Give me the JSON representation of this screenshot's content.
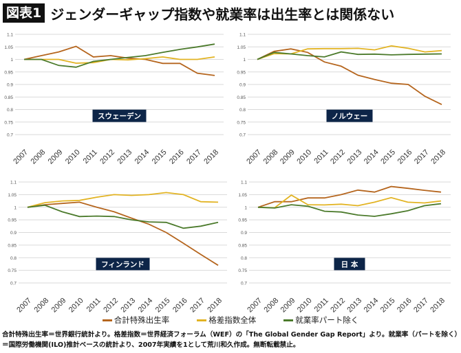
{
  "title": {
    "badge": "図表1",
    "text": "ジェンダーギャップ指数や就業率は出生率とは関係ない"
  },
  "legend": [
    {
      "name": "合計特殊出生率",
      "color": "#b5651d"
    },
    {
      "name": "格差指数全体",
      "color": "#e2b322"
    },
    {
      "name": "就業率パート除く",
      "color": "#4b7a2b"
    }
  ],
  "note": "合計特殊出生率＝世界銀行統計より。格差指数＝世界経済フォーラム（WEF）の「The Global Gender Gap Report」より。就業率（パートを除く）＝国際労働機関(ILO)推計ベースの統計より、2007年実績を1として荒川和久作成。無断転載禁止。",
  "chart_data": [
    {
      "type": "line",
      "label": "スウェーデン",
      "ylim": [
        0.7,
        1.1
      ],
      "yticks": [
        "0.7",
        "0.75",
        "0.8",
        "0.85",
        "0.9",
        "0.95",
        "1",
        "1.05",
        "1.1"
      ],
      "grid": true,
      "x": [
        "2007",
        "2008",
        "2009",
        "2010",
        "2011",
        "2012",
        "2013",
        "2014",
        "2015",
        "2016",
        "2017",
        "2018"
      ],
      "series": [
        {
          "name": "合計特殊出生率",
          "values": [
            1.0,
            1.015,
            1.03,
            1.052,
            1.01,
            1.015,
            1.005,
            1.0,
            0.984,
            0.984,
            0.945,
            0.936
          ]
        },
        {
          "name": "格差指数全体",
          "values": [
            1.0,
            1.0,
            1.0,
            0.985,
            0.987,
            1.0,
            0.998,
            1.003,
            1.01,
            1.0,
            1.0,
            1.01
          ]
        },
        {
          "name": "就業率パート除く",
          "values": [
            1.0,
            1.0,
            0.976,
            0.969,
            0.992,
            1.0,
            1.008,
            1.015,
            1.028,
            1.04,
            1.05,
            1.061
          ]
        }
      ]
    },
    {
      "type": "line",
      "label": "ノルウェー",
      "ylim": [
        0.7,
        1.1
      ],
      "yticks": [
        "0.7",
        "0.75",
        "0.8",
        "0.85",
        "0.9",
        "0.95",
        "1",
        "1.05",
        "1.1"
      ],
      "grid": true,
      "x": [
        "2007",
        "2008",
        "2009",
        "2010",
        "2011",
        "2012",
        "2013",
        "2014",
        "2015",
        "2016",
        "2017",
        "2018"
      ],
      "series": [
        {
          "name": "合計特殊出生率",
          "values": [
            1.0,
            1.032,
            1.042,
            1.028,
            0.99,
            0.973,
            0.937,
            0.92,
            0.905,
            0.9,
            0.853,
            0.82
          ]
        },
        {
          "name": "格差指数全体",
          "values": [
            1.0,
            1.023,
            1.022,
            1.042,
            1.043,
            1.043,
            1.044,
            1.038,
            1.054,
            1.044,
            1.03,
            1.035
          ]
        },
        {
          "name": "就業率パート除く",
          "values": [
            1.0,
            1.028,
            1.022,
            1.015,
            1.01,
            1.03,
            1.02,
            1.021,
            1.018,
            1.02,
            1.021,
            1.022
          ]
        }
      ]
    },
    {
      "type": "line",
      "label": "フィンランド",
      "ylim": [
        0.7,
        1.1
      ],
      "yticks": [
        "0.7",
        "0.75",
        "0.8",
        "0.85",
        "0.9",
        "0.95",
        "1",
        "1.05",
        "1.1"
      ],
      "grid": true,
      "x": [
        "2007",
        "2008",
        "2009",
        "2010",
        "2011",
        "2012",
        "2013",
        "2014",
        "2015",
        "2016",
        "2017",
        "2018"
      ],
      "series": [
        {
          "name": "合計特殊出生率",
          "values": [
            1.0,
            1.01,
            1.015,
            1.02,
            1.0,
            0.982,
            0.957,
            0.933,
            0.9,
            0.857,
            0.813,
            0.77
          ]
        },
        {
          "name": "格差指数全体",
          "values": [
            1.0,
            1.018,
            1.025,
            1.027,
            1.04,
            1.05,
            1.047,
            1.05,
            1.058,
            1.05,
            1.022,
            1.02
          ]
        },
        {
          "name": "就業率パート除く",
          "values": [
            1.0,
            1.008,
            0.982,
            0.963,
            0.965,
            0.963,
            0.95,
            0.942,
            0.94,
            0.917,
            0.925,
            0.94
          ]
        }
      ]
    },
    {
      "type": "line",
      "label": "日 本",
      "ylim": [
        0.7,
        1.1
      ],
      "yticks": [
        "0.7",
        "0.75",
        "0.8",
        "0.85",
        "0.9",
        "0.95",
        "1",
        "1.05",
        "1.1"
      ],
      "grid": true,
      "x": [
        "2007",
        "2008",
        "2009",
        "2010",
        "2011",
        "2012",
        "2013",
        "2014",
        "2015",
        "2016",
        "2017",
        "2018"
      ],
      "series": [
        {
          "name": "合計特殊出生率",
          "values": [
            1.0,
            1.022,
            1.022,
            1.037,
            1.037,
            1.05,
            1.068,
            1.06,
            1.082,
            1.075,
            1.067,
            1.06
          ]
        },
        {
          "name": "格差指数全体",
          "values": [
            1.0,
            0.998,
            1.048,
            1.01,
            1.009,
            1.012,
            1.006,
            1.02,
            1.038,
            1.02,
            1.017,
            1.025
          ]
        },
        {
          "name": "就業率パート除く",
          "values": [
            1.0,
            0.997,
            1.01,
            1.004,
            0.984,
            0.981,
            0.969,
            0.964,
            0.974,
            0.986,
            1.006,
            1.014
          ]
        }
      ]
    }
  ]
}
